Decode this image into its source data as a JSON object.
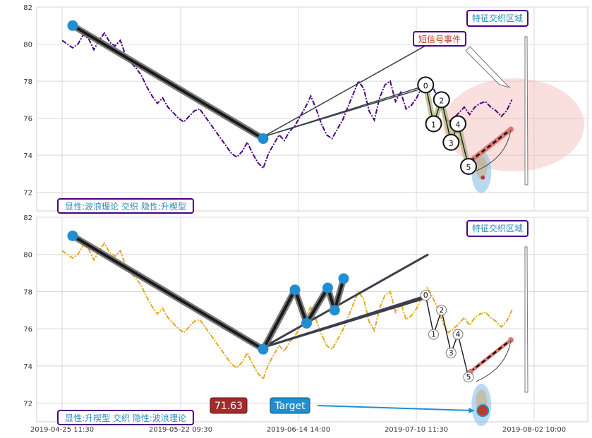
{
  "chart_data": [
    {
      "type": "line",
      "panel": "top",
      "ylim": [
        71,
        82
      ],
      "yticks": [
        72,
        74,
        76,
        78,
        80,
        82
      ],
      "xlim": [
        0,
        89
      ],
      "series": [
        {
          "color": "#4b0082",
          "style": "dash-dot",
          "values": [
            80.2,
            80.0,
            79.8,
            80.0,
            80.5,
            80.3,
            79.7,
            80.2,
            80.6,
            80.1,
            79.9,
            80.2,
            79.4,
            79.0,
            78.7,
            78.3,
            77.7,
            77.2,
            76.8,
            77.1,
            76.6,
            76.3,
            76.0,
            75.8,
            76.1,
            76.4,
            76.5,
            76.1,
            75.7,
            75.3,
            74.9,
            74.5,
            74.1,
            73.9,
            74.2,
            74.7,
            74.1,
            73.6,
            73.3,
            74.1,
            74.6,
            75.1,
            74.8,
            75.3,
            75.6,
            76.1,
            76.6,
            77.2,
            76.5,
            75.7,
            75.1,
            74.9,
            75.4,
            75.9,
            76.6,
            77.3,
            78.0,
            77.6,
            76.4,
            75.9,
            77.1,
            77.8,
            78.0,
            76.9,
            77.4,
            76.5,
            76.7,
            77.1,
            77.7,
            78.2,
            77.7,
            77.1,
            76.3,
            75.8,
            76.0,
            76.3,
            76.6,
            76.2,
            76.6,
            76.8,
            76.9,
            76.6,
            76.4,
            76.1,
            76.4,
            77.0
          ]
        }
      ],
      "zigzag_points": [
        {
          "x": 2,
          "y": 81
        },
        {
          "x": 38,
          "y": 74.9
        }
      ],
      "wedge_lines": [
        {
          "from": {
            "x": 38,
            "y": 75
          },
          "to": {
            "x": 68,
            "y": 77.7
          }
        },
        {
          "from": {
            "x": 38,
            "y": 75
          },
          "to": {
            "x": 69.2,
            "y": 77.7
          }
        },
        {
          "from": {
            "x": 38,
            "y": 75
          },
          "to": {
            "x": 69.2,
            "y": 80
          }
        }
      ],
      "wave_points": [
        {
          "label": "0",
          "x": 68.7,
          "y": 77.8
        },
        {
          "label": "1",
          "x": 70.2,
          "y": 75.7
        },
        {
          "label": "2",
          "x": 71.7,
          "y": 77.0
        },
        {
          "label": "3",
          "x": 73.5,
          "y": 74.7
        },
        {
          "label": "4",
          "x": 74.8,
          "y": 75.7
        },
        {
          "label": "5",
          "x": 76.8,
          "y": 73.4
        }
      ],
      "target": {
        "x": 79.5,
        "y": 72.8
      },
      "projection": {
        "from": {
          "x": 77.2,
          "y": 73.7
        },
        "to": {
          "x": 84.8,
          "y": 75.4
        }
      },
      "annotations": {
        "region_label": "特征交织区域",
        "event_label": "短信号事件",
        "pattern_label": "显性:波浪理论 交织 隐性:升楔型"
      }
    },
    {
      "type": "line",
      "panel": "bottom",
      "ylim": [
        71,
        82
      ],
      "yticks": [
        72,
        74,
        76,
        78,
        80,
        82
      ],
      "xlim": [
        0,
        89
      ],
      "xticks": [
        "2019-04-25 11:30",
        "2019-05-22 09:30",
        "2019-06-14 14:00",
        "2019-07-10 11:30",
        "2019-08-02 10:00"
      ],
      "series": [
        {
          "color": "#e6a817",
          "style": "dash-dot",
          "values": [
            80.2,
            80.0,
            79.8,
            80.0,
            80.5,
            80.3,
            79.7,
            80.2,
            80.6,
            80.1,
            79.9,
            80.2,
            79.4,
            79.0,
            78.7,
            78.3,
            77.7,
            77.2,
            76.8,
            77.1,
            76.6,
            76.3,
            76.0,
            75.8,
            76.1,
            76.4,
            76.5,
            76.1,
            75.7,
            75.3,
            74.9,
            74.5,
            74.1,
            73.9,
            74.2,
            74.7,
            74.1,
            73.6,
            73.3,
            74.1,
            74.6,
            75.1,
            74.8,
            75.3,
            75.6,
            76.1,
            76.6,
            77.2,
            76.5,
            75.7,
            75.1,
            74.9,
            75.4,
            75.9,
            76.6,
            77.3,
            78.0,
            77.6,
            76.4,
            75.9,
            77.1,
            77.8,
            78.0,
            76.9,
            77.4,
            76.5,
            76.7,
            77.1,
            77.7,
            78.2,
            77.7,
            77.1,
            76.3,
            75.8,
            76.0,
            76.3,
            76.6,
            76.2,
            76.6,
            76.8,
            76.9,
            76.6,
            76.4,
            76.1,
            76.4,
            77.0
          ]
        }
      ],
      "zigzag_points": [
        {
          "x": 2,
          "y": 81
        },
        {
          "x": 38,
          "y": 74.9
        },
        {
          "x": 44,
          "y": 78.1
        },
        {
          "x": 46.2,
          "y": 76.3
        },
        {
          "x": 50.2,
          "y": 78.2
        },
        {
          "x": 51.5,
          "y": 77.0
        },
        {
          "x": 53.2,
          "y": 78.7
        }
      ],
      "wedge_lines": [
        {
          "from": {
            "x": 38,
            "y": 75
          },
          "to": {
            "x": 68,
            "y": 77.7
          }
        },
        {
          "from": {
            "x": 38,
            "y": 75
          },
          "to": {
            "x": 69.2,
            "y": 77.7
          }
        },
        {
          "from": {
            "x": 38,
            "y": 75
          },
          "to": {
            "x": 69.2,
            "y": 80
          }
        }
      ],
      "wave_points": [
        {
          "label": "0",
          "x": 68.7,
          "y": 77.8
        },
        {
          "label": "1",
          "x": 70.2,
          "y": 75.7
        },
        {
          "label": "2",
          "x": 71.7,
          "y": 77.0
        },
        {
          "label": "3",
          "x": 73.5,
          "y": 74.7
        },
        {
          "label": "4",
          "x": 74.8,
          "y": 75.7
        },
        {
          "label": "5",
          "x": 76.8,
          "y": 73.4
        }
      ],
      "target": {
        "x": 79.5,
        "y": 71.6
      },
      "projection": {
        "from": {
          "x": 77.2,
          "y": 73.7
        },
        "to": {
          "x": 84.8,
          "y": 75.4
        }
      },
      "annotations": {
        "region_label": "特征交织区域",
        "pattern_label": "显性:升楔型 交织 隐性:波浪理论",
        "price_label": "71.63",
        "target_label": "Target"
      }
    }
  ]
}
